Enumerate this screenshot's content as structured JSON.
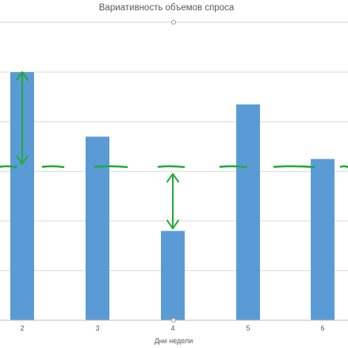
{
  "chart_data": {
    "type": "bar",
    "title": "Вариативность объемов спроса",
    "xlabel": "Дни недели",
    "ylabel": "",
    "categories": [
      "2",
      "3",
      "4",
      "5",
      "6"
    ],
    "values": [
      100,
      74,
      36,
      87,
      65
    ],
    "ylim": [
      0,
      100
    ],
    "grid": true,
    "gridlines": [
      20,
      40,
      60,
      80,
      100
    ],
    "average_line": 62,
    "annotations": [
      {
        "type": "double-arrow",
        "category": "2",
        "from": 100,
        "to": 63
      },
      {
        "type": "double-arrow",
        "category": "4",
        "from": 59,
        "to": 37
      }
    ],
    "colors": {
      "bar": "#5b9bd5",
      "grid": "#d9d9d9",
      "axis": "#bfbfbf",
      "annotation": "#22aa3a",
      "text": "#595959"
    }
  }
}
